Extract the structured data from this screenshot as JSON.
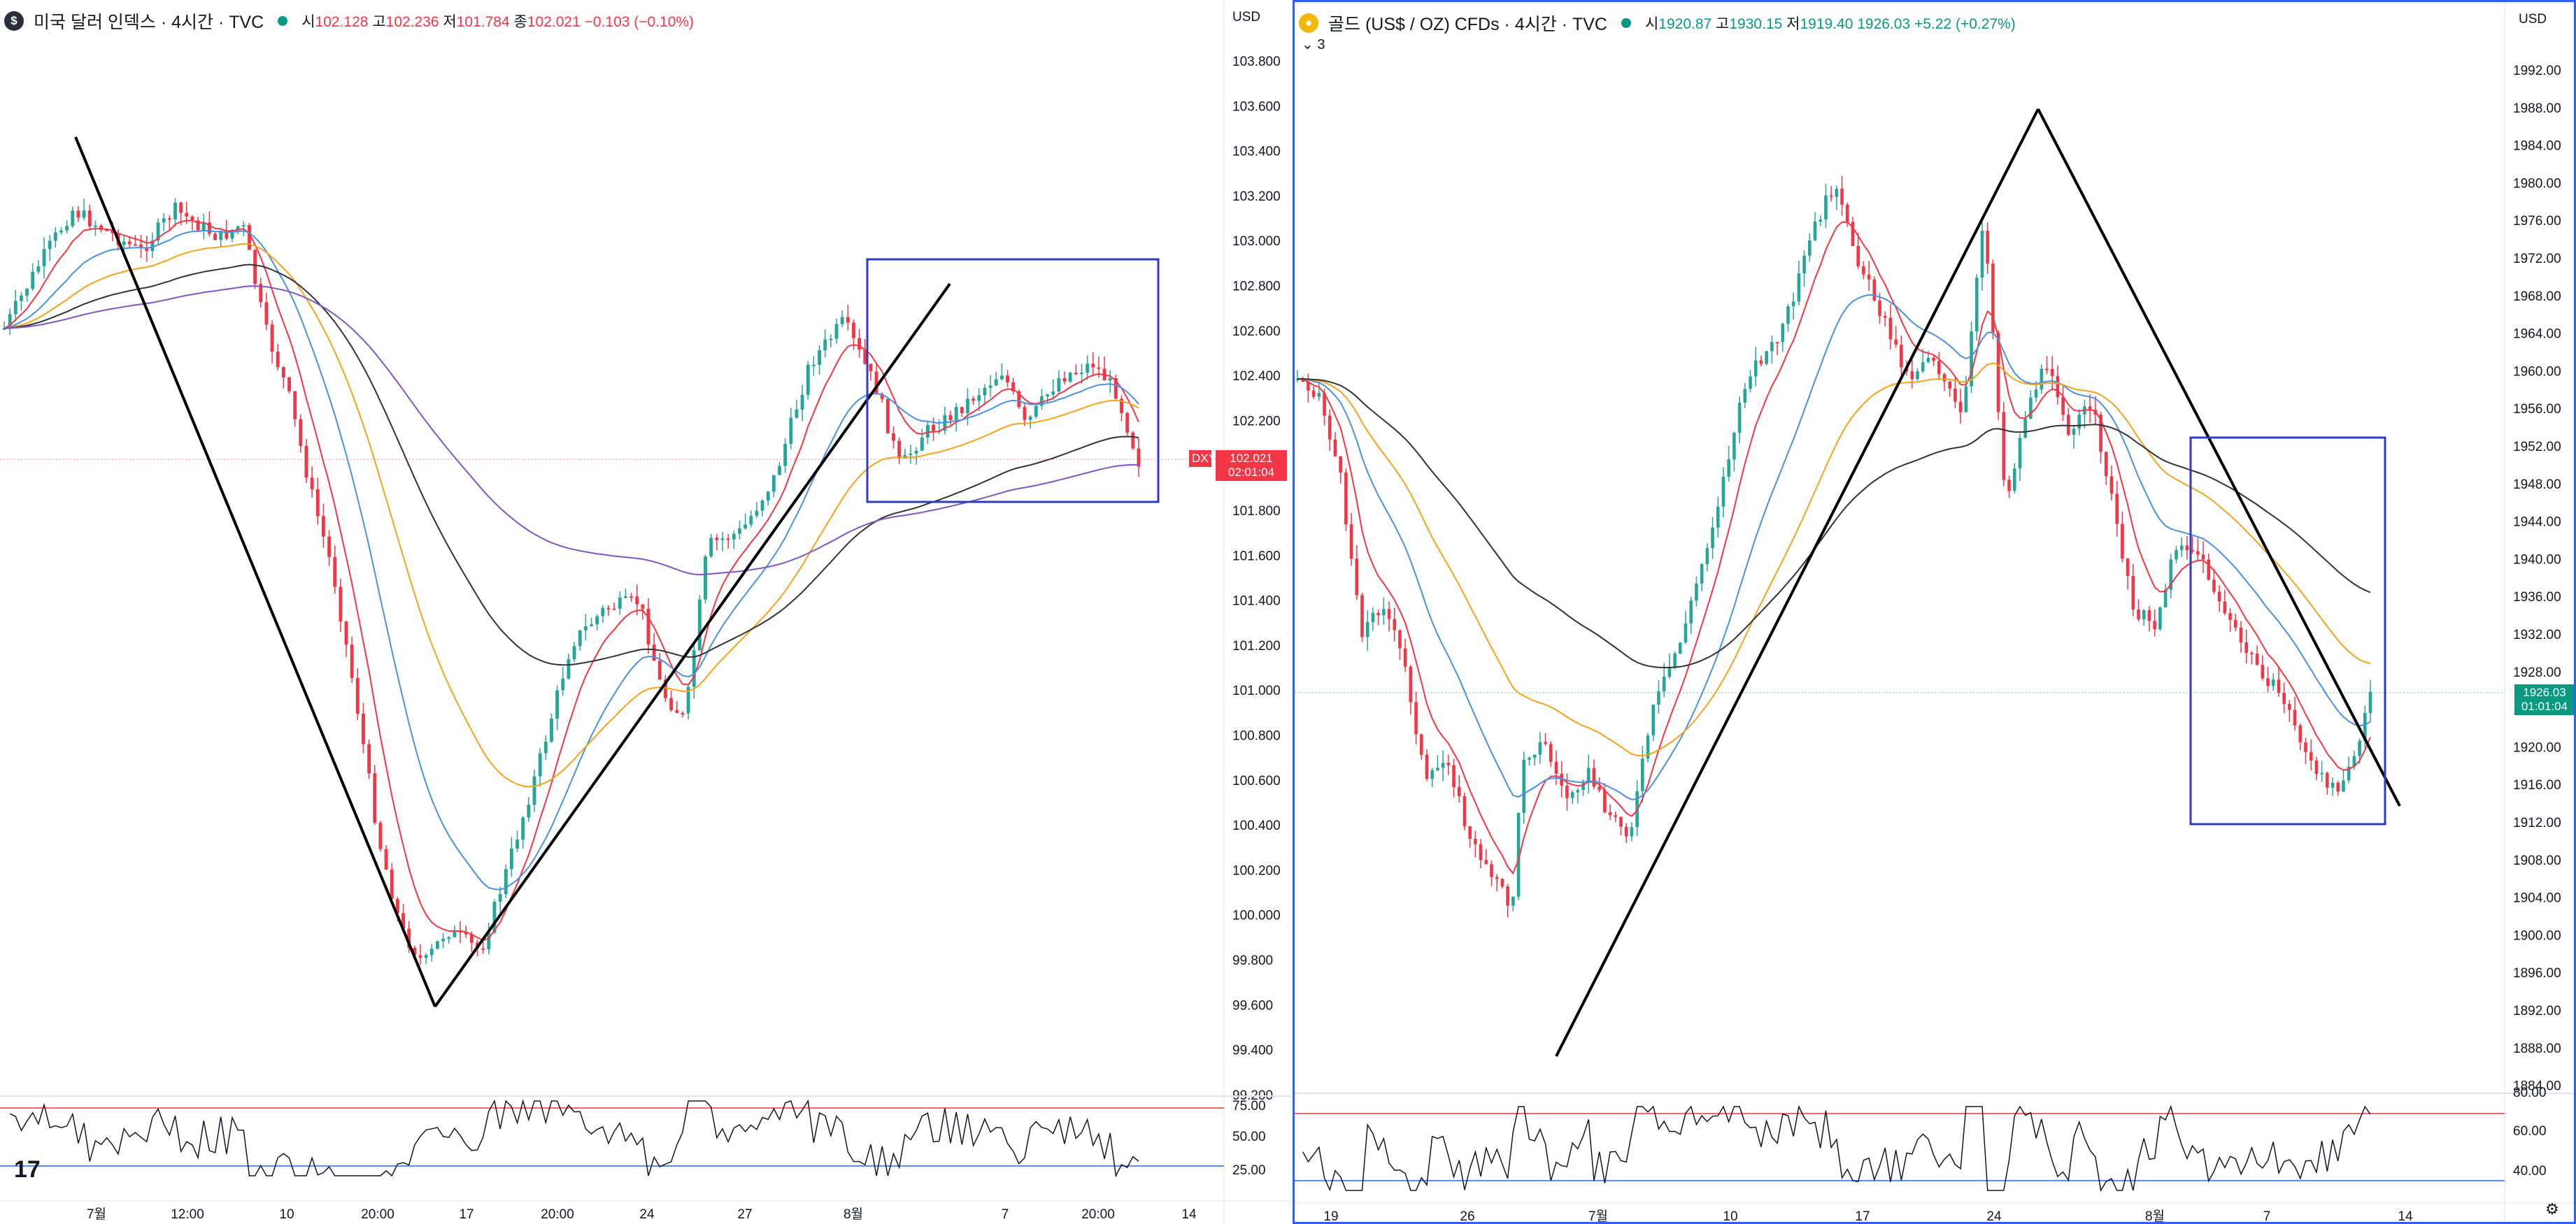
{
  "left_chart": {
    "title": "미국 달러 인덱스 · 4시간 · TVC",
    "logo_letter": "$",
    "ohlc": {
      "o_label": "시",
      "o": "102.128",
      "h_label": "고",
      "h": "102.236",
      "l_label": "저",
      "l": "101.784",
      "c_label": "종",
      "c": "102.021",
      "change": "−0.103 (−0.10%)"
    },
    "currency": "USD",
    "y_ticks": [
      "103.800",
      "103.600",
      "103.400",
      "103.200",
      "103.000",
      "102.800",
      "102.600",
      "102.400",
      "102.200",
      "102.000",
      "101.800",
      "101.600",
      "101.400",
      "101.200",
      "101.000",
      "100.800",
      "100.600",
      "100.400",
      "100.200",
      "100.000",
      "99.800",
      "99.600",
      "99.400",
      "99.200"
    ],
    "price_tag": {
      "symbol": "DXY",
      "price": "102.021",
      "countdown": "02:01:04"
    },
    "rsi_ticks": [
      "75.00",
      "50.00",
      "25.00"
    ],
    "x_ticks": [
      "7월",
      "12:00",
      "10",
      "20:00",
      "17",
      "20:00",
      "24",
      "27",
      "8월",
      "7",
      "20:00",
      "14"
    ],
    "colors": {
      "up": "#26a69a",
      "down": "#f23645",
      "ma_fast": "#f23645",
      "ma_blue": "#4a90e2",
      "ma_orange": "#f7a21b",
      "ma_black": "#333333",
      "ma_purple": "#7e57c2",
      "box": "#2f3bbf"
    },
    "tv_logo": "17"
  },
  "right_chart": {
    "title": "골드 (US$ / OZ) CFDs · 4시간 · TVC",
    "indicator_count": "3",
    "ohlc": {
      "o_label": "시",
      "o": "1920.87",
      "h_label": "고",
      "h": "1930.15",
      "l_label": "저",
      "l": "1919.40",
      "c": "1926.03",
      "change": "+5.22 (+0.27%)"
    },
    "currency": "USD",
    "y_ticks": [
      "1992.00",
      "1988.00",
      "1984.00",
      "1980.00",
      "1976.00",
      "1972.00",
      "1968.00",
      "1964.00",
      "1960.00",
      "1956.00",
      "1952.00",
      "1948.00",
      "1944.00",
      "1940.00",
      "1936.00",
      "1932.00",
      "1928.00",
      "1924.00",
      "1920.00",
      "1916.00",
      "1912.00",
      "1908.00",
      "1904.00",
      "1900.00",
      "1896.00",
      "1892.00",
      "1888.00",
      "1884.00"
    ],
    "price_tag": {
      "price": "1926.03",
      "countdown": "01:01:04"
    },
    "rsi_ticks": [
      "80.00",
      "60.00",
      "40.00"
    ],
    "x_ticks": [
      "19",
      "26",
      "7월",
      "10",
      "17",
      "24",
      "8월",
      "7",
      "14"
    ],
    "colors": {
      "up": "#26a69a",
      "down": "#f23645",
      "box": "#2f3bbf",
      "tag": "#089981"
    }
  }
}
